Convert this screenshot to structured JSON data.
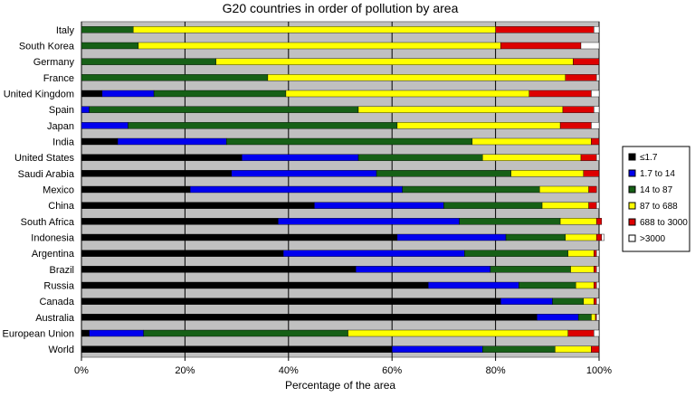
{
  "chart_data": {
    "type": "bar",
    "stacked": true,
    "orientation": "horizontal",
    "title": "G20 countries in order of pollution by area",
    "xlabel": "Percentage of the area",
    "ylabel": "",
    "xlim": [
      0,
      100
    ],
    "x_ticks": [
      "0%",
      "20%",
      "40%",
      "60%",
      "80%",
      "100%"
    ],
    "legend_position": "right",
    "categories": [
      "Italy",
      "South Korea",
      "Germany",
      "France",
      "United Kingdom",
      "Spain",
      "Japan",
      "India",
      "United States",
      "Saudi Arabia",
      "Mexico",
      "China",
      "South Africa",
      "Indonesia",
      "Argentina",
      "Brazil",
      "Russia",
      "Canada",
      "Australia",
      "European Union",
      "World"
    ],
    "series": [
      {
        "name": "≤1.7",
        "color": "#000000",
        "values": [
          0,
          0,
          0,
          0,
          4,
          0,
          0,
          7,
          31,
          29,
          21,
          45,
          38,
          61,
          39,
          53,
          67,
          81,
          88,
          1.5,
          60
        ]
      },
      {
        "name": "1.7 to 14",
        "color": "#0000ee",
        "values": [
          0,
          0,
          0,
          0,
          10,
          1.5,
          9,
          21,
          22.5,
          28,
          41,
          25,
          35,
          21,
          35,
          26,
          17.5,
          10,
          8,
          10.5,
          17.5
        ]
      },
      {
        "name": "14 to 87",
        "color": "#166016",
        "values": [
          10,
          11,
          26,
          36,
          25.5,
          52,
          52,
          47.5,
          24,
          26,
          26.5,
          19,
          19.5,
          11.5,
          20,
          15.5,
          11,
          6,
          2.5,
          39.5,
          14
        ]
      },
      {
        "name": "87 to 688",
        "color": "#ffff00",
        "values": [
          70,
          70,
          69,
          57.5,
          47,
          39.5,
          31.5,
          23,
          19,
          14,
          9.5,
          9,
          7,
          6,
          5,
          4.5,
          3.5,
          2,
          0.8,
          42.5,
          7
        ]
      },
      {
        "name": "688 to 3000",
        "color": "#dd0000",
        "values": [
          19,
          15.5,
          5,
          6,
          12,
          6,
          6,
          1.5,
          3,
          3,
          1.5,
          1.5,
          1,
          1,
          0.5,
          0.5,
          0.5,
          0.5,
          0.2,
          5,
          1.5
        ]
      },
      {
        "name": ">3000",
        "color": "#ffffff",
        "values": [
          1,
          3.5,
          0,
          0.5,
          1.5,
          1,
          1.5,
          0,
          0.5,
          0,
          0,
          0.5,
          0,
          0.5,
          0.5,
          0.5,
          0.5,
          0.5,
          0.5,
          1,
          0
        ]
      }
    ]
  }
}
